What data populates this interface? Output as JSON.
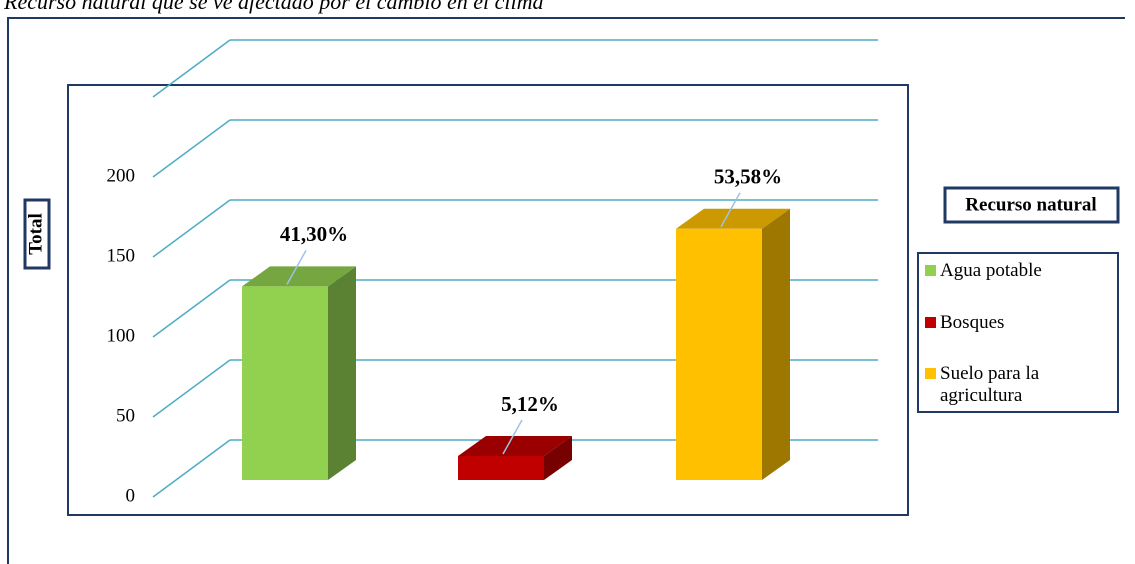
{
  "chart_data": {
    "type": "bar3d",
    "title": "Recurso natural que se ve afectado por el cambio en el clima",
    "y_label": "Total",
    "legend_title": "Recurso natural",
    "categories": [
      "Agua potable",
      "Bosques",
      "Suelo para la agricultura"
    ],
    "values": [
      121,
      15,
      157
    ],
    "value_labels": [
      "41,30%",
      "5,12%",
      "53,58%"
    ],
    "colors": [
      "#92d050",
      "#c00000",
      "#ffc000"
    ],
    "ylim": [
      0,
      250
    ],
    "yticks": [
      0,
      50,
      100,
      150,
      200
    ],
    "grid": true
  }
}
